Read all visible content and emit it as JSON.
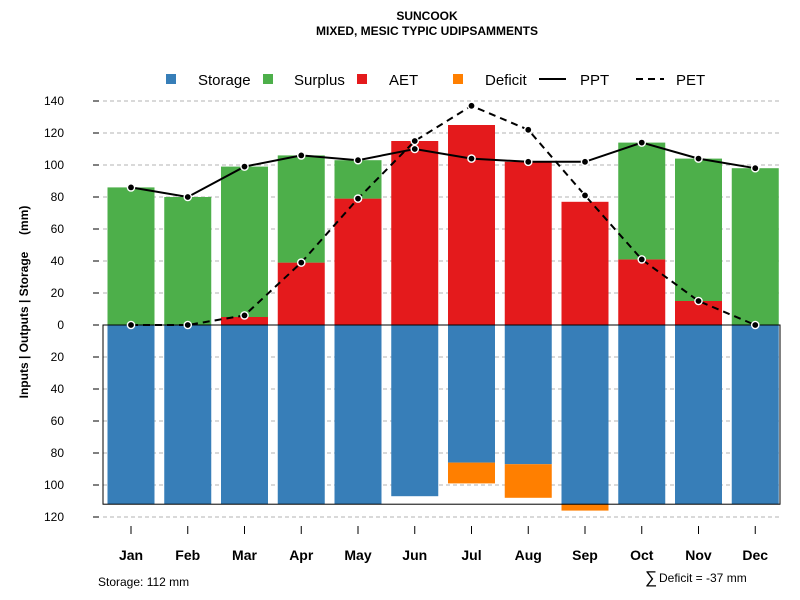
{
  "chart_data": {
    "type": "bar",
    "title": "SUNCOOK",
    "subtitle": "MIXED, MESIC TYPIC UDIPSAMMENTS",
    "ylabel": "Inputs | Outputs | Storage     (mm)",
    "ylim": [
      -120,
      140
    ],
    "yticks": [
      140,
      120,
      100,
      80,
      60,
      40,
      20,
      0,
      -20,
      -40,
      -60,
      -80,
      -100,
      -120
    ],
    "ytick_labels": [
      "140",
      "120",
      "100",
      "80",
      "60",
      "40",
      "20",
      "0",
      "20",
      "40",
      "60",
      "80",
      "100",
      "120"
    ],
    "grid": true,
    "categories": [
      "Jan",
      "Feb",
      "Mar",
      "Apr",
      "May",
      "Jun",
      "Jul",
      "Aug",
      "Sep",
      "Oct",
      "Nov",
      "Dec"
    ],
    "series": [
      {
        "name": "Storage",
        "color": "#377EB8",
        "values": [
          -112,
          -112,
          -112,
          -112,
          -112,
          -107,
          -86,
          -87,
          -112,
          -112,
          -112,
          -112
        ]
      },
      {
        "name": "Surplus",
        "color": "#4DAF4A",
        "values": [
          86,
          80,
          94,
          67,
          24,
          0,
          0,
          0,
          0,
          73,
          89,
          98
        ]
      },
      {
        "name": "AET",
        "color": "#E41A1C",
        "values": [
          0,
          0,
          5,
          39,
          79,
          115,
          125,
          102,
          77,
          41,
          15,
          0
        ]
      },
      {
        "name": "Deficit",
        "color": "#FF7F00",
        "values": [
          0,
          0,
          0,
          0,
          0,
          0,
          -13,
          -21,
          -4,
          0,
          0,
          0
        ]
      },
      {
        "name": "PPT",
        "style": "solid",
        "color": "#000000",
        "values": [
          86,
          80,
          99,
          106,
          103,
          110,
          104,
          102,
          102,
          114,
          104,
          98
        ]
      },
      {
        "name": "PET",
        "style": "dashed",
        "color": "#000000",
        "values": [
          0,
          0,
          6,
          39,
          79,
          115,
          137,
          122,
          81,
          41,
          15,
          0
        ]
      }
    ],
    "legend": {
      "position": "top",
      "items": [
        "Storage",
        "Surplus",
        "AET",
        "Deficit",
        "PPT",
        "PET"
      ]
    },
    "storage_note": "Storage: 112 mm",
    "deficit_note": "Deficit = -37 mm",
    "deficit_symbol": "∑"
  }
}
